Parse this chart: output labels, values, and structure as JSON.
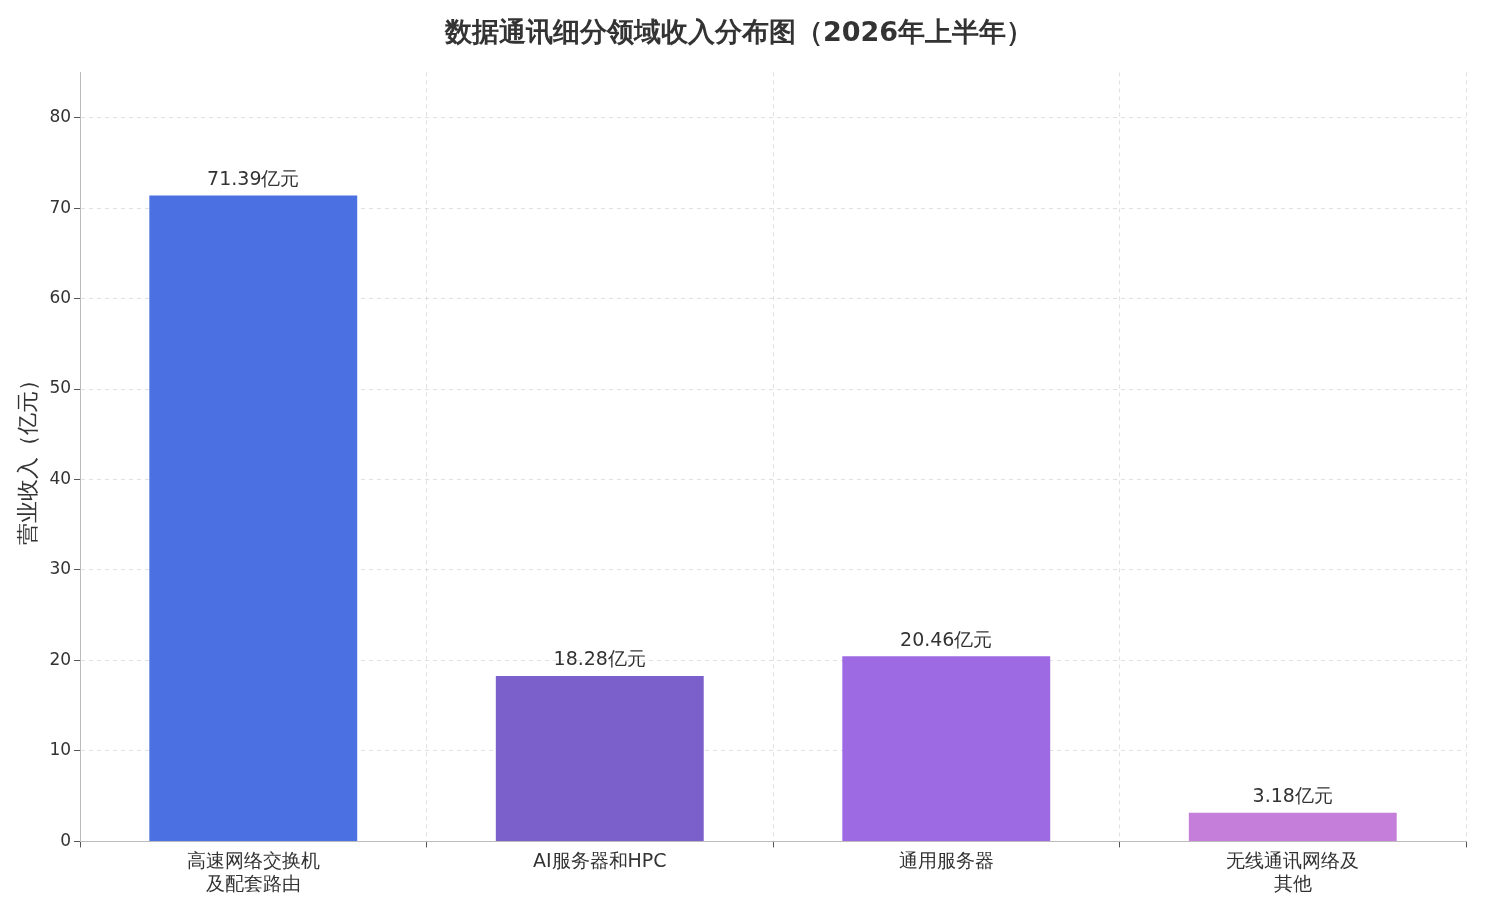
{
  "chart_data": {
    "type": "bar",
    "title": "数据通讯细分领域收入分布图（2026年上半年）",
    "ylabel": "营业收入（亿元）",
    "categories": [
      "高速网络交换机及配套路由",
      "AI服务器和HPC",
      "通用服务器",
      "无线通讯网络及其他"
    ],
    "values": [
      71.39,
      18.28,
      20.46,
      3.18
    ],
    "colors": [
      "#4a70e1",
      "#7b5fca",
      "#9e6ae3",
      "#c57ed9"
    ],
    "value_labels": [
      "71.39亿元",
      "18.28亿元",
      "20.46亿元",
      "3.18亿元"
    ],
    "ylim": [
      0,
      85
    ],
    "yticks": [
      0,
      10,
      20,
      30,
      40,
      50,
      60,
      70,
      80
    ],
    "grid": true,
    "legend": false
  }
}
